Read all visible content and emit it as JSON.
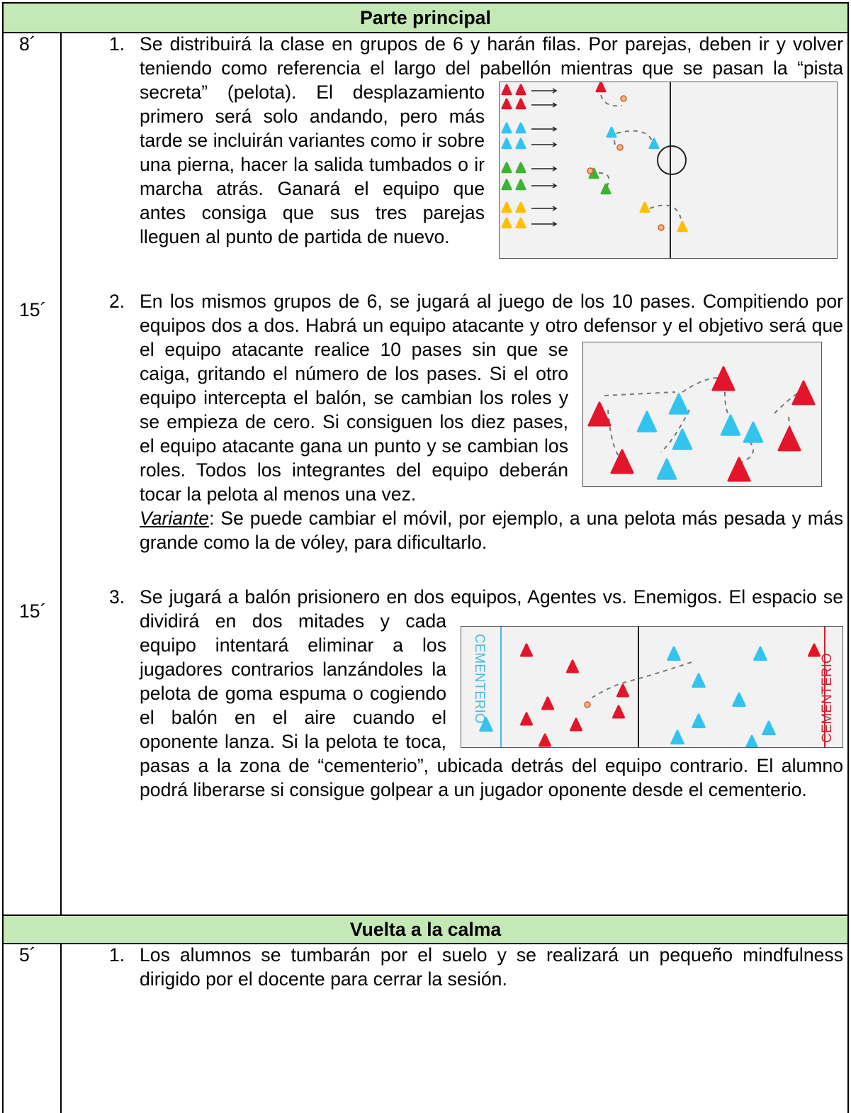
{
  "sections": [
    {
      "title": "Parte principal",
      "rows": [
        {
          "time": "8´",
          "number": "1.",
          "text": "Se distribuirá la clase en grupos de 6 y harán filas. Por parejas, deben ir y volver teniendo como referencia el largo del pabellón mientras que se pasan la “pista secreta” (pelota). El desplazamiento primero será solo andando, pero más tarde se incluirán variantes como ir sobre una pierna, hacer la salida tumbados o ir marcha atrás. Ganará el equipo que antes consiga que sus tres parejas lleguen al punto de partida de nuevo."
        },
        {
          "time": "15´",
          "number": "2.",
          "text": "En los mismos grupos de 6, se jugará al juego de los 10 pases. Compitiendo por equipos dos a dos. Habrá un equipo atacante y otro defensor y el objetivo será que el equipo atacante realice 10 pases sin que se caiga, gritando el número de los pases. Si el otro equipo intercepta el balón, se cambian los roles y se empieza de cero. Si consiguen los diez pases, el equipo atacante gana un punto y se cambian los roles. Todos los integrantes del equipo deberán tocar la pelota al menos una vez.",
          "variant_label": "Variante",
          "variant_text": ": Se puede cambiar el móvil, por ejemplo, a una pelota más pesada y más grande como la de vóley, para dificultarlo."
        },
        {
          "time": "15´",
          "number": "3.",
          "text": "Se jugará a balón prisionero en dos equipos, Agentes vs. Enemigos. El espacio se dividirá en dos mitades y cada equipo intentará eliminar a los jugadores contrarios lanzándoles la pelota de goma espuma o cogiendo el balón en el aire cuando el oponente lanza. Si la pelota te toca, pasas a la zona de “cementerio”, ubicada detrás del equipo contrario. El alumno podrá liberarse si consigue golpear a un jugador oponente desde el cementerio."
        }
      ]
    },
    {
      "title": "Vuelta a la calma",
      "rows": [
        {
          "time": "5´",
          "number": "1.",
          "text": "Los alumnos se tumbarán por el suelo y se realizará un pequeño mindfulness dirigido por el docente para cerrar la sesión."
        }
      ]
    }
  ],
  "figure_label": "CEMENTERIO"
}
